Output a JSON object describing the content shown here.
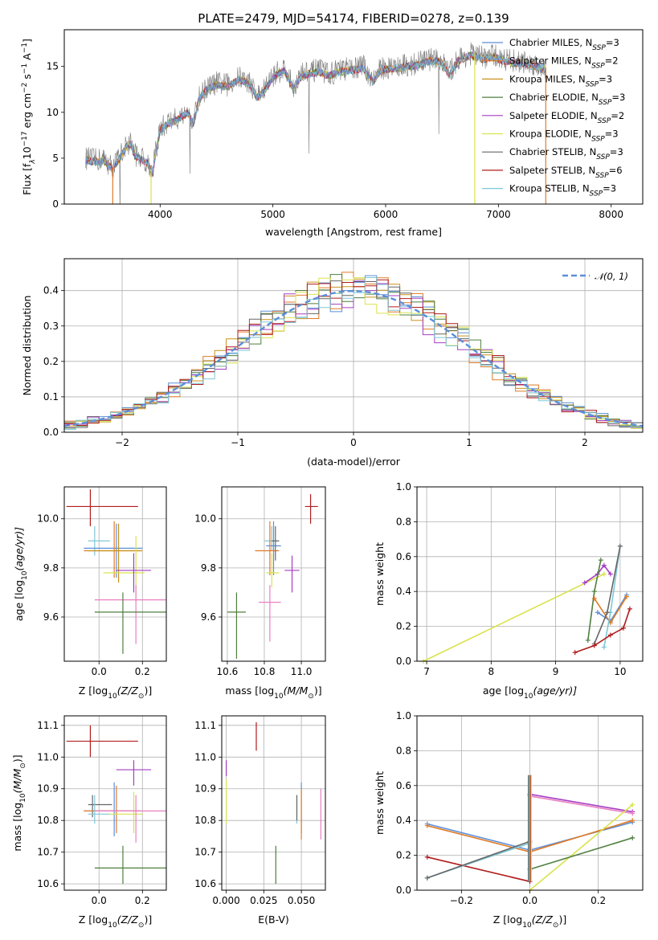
{
  "figure": {
    "title": "PLATE=2479, MJD=54174, FIBERID=0278, z=0.139"
  },
  "colors": {
    "Chabrier MILES": "#5b8fd8",
    "Salpeter MILES": "#e07b28",
    "Kroupa MILES": "#c8921e",
    "Chabrier ELODIE": "#4f7f3f",
    "Salpeter ELODIE": "#a53ec2",
    "Kroupa ELODIE": "#d9e34d",
    "Chabrier STELIB": "#666666",
    "Salpeter STELIB": "#b01c1c",
    "Kroupa STELIB": "#7ec8d8",
    "pink": "#e97fc4"
  },
  "chart_data": [
    {
      "id": "spectrum",
      "type": "line",
      "xlabel": "wavelength [Angstrom, rest frame]",
      "ylabel_main": "Flux [f",
      "ylabel_sub": "λ",
      "ylabel_tail": "10",
      "ylabel_exp": "−17",
      "ylabel_units": " erg cm",
      "ylabel_cm_exp": "−2",
      "ylabel_s": " s",
      "ylabel_s_exp": "−1",
      "ylabel_A": " A",
      "ylabel_A_exp": "−1",
      "ylabel_close": "]",
      "xlim": [
        3150,
        8280
      ],
      "ylim": [
        0,
        19
      ],
      "xticks": [
        4000,
        5000,
        6000,
        7000,
        8000
      ],
      "yticks": [
        0,
        5,
        10,
        15
      ],
      "spectrum_points": [
        [
          3340,
          5.0
        ],
        [
          3420,
          4.8
        ],
        [
          3500,
          4.9
        ],
        [
          3580,
          4.0
        ],
        [
          3640,
          5.2
        ],
        [
          3700,
          6.4
        ],
        [
          3740,
          6.8
        ],
        [
          3780,
          5.4
        ],
        [
          3840,
          5.0
        ],
        [
          3900,
          4.5
        ],
        [
          3930,
          3.4
        ],
        [
          3960,
          5.6
        ],
        [
          4000,
          8.2
        ],
        [
          4080,
          9.0
        ],
        [
          4160,
          9.4
        ],
        [
          4240,
          10.2
        ],
        [
          4300,
          9.0
        ],
        [
          4340,
          11.5
        ],
        [
          4400,
          12.5
        ],
        [
          4500,
          13.2
        ],
        [
          4600,
          13.0
        ],
        [
          4700,
          13.8
        ],
        [
          4800,
          13.2
        ],
        [
          4860,
          11.8
        ],
        [
          4920,
          12.4
        ],
        [
          5000,
          14.0
        ],
        [
          5100,
          14.8
        ],
        [
          5180,
          12.8
        ],
        [
          5260,
          14.2
        ],
        [
          5400,
          14.6
        ],
        [
          5500,
          14.2
        ],
        [
          5600,
          14.6
        ],
        [
          5700,
          14.8
        ],
        [
          5800,
          15.0
        ],
        [
          5890,
          13.6
        ],
        [
          5960,
          14.8
        ],
        [
          6100,
          15.0
        ],
        [
          6200,
          15.2
        ],
        [
          6300,
          15.4
        ],
        [
          6400,
          15.8
        ],
        [
          6500,
          15.6
        ],
        [
          6563,
          14.2
        ],
        [
          6640,
          15.8
        ],
        [
          6760,
          16.4
        ],
        [
          6860,
          16.0
        ],
        [
          6960,
          16.2
        ],
        [
          7060,
          15.8
        ],
        [
          7150,
          15.6
        ],
        [
          7250,
          15.4
        ],
        [
          7330,
          15.2
        ],
        [
          7420,
          14.9
        ]
      ],
      "series_names": [
        "Chabrier MILES",
        "Salpeter MILES",
        "Kroupa MILES",
        "Chabrier ELODIE",
        "Salpeter ELODIE",
        "Kroupa ELODIE",
        "Chabrier STELIB",
        "Salpeter STELIB",
        "Kroupa STELIB"
      ],
      "series_nssp": [
        "3",
        "2",
        "3",
        "3",
        "2",
        "3",
        "3",
        "6",
        "3"
      ],
      "legend_nssp_prefix": "N",
      "legend_nssp_sub": "SSP",
      "legend_placement": "upper right",
      "grid": false
    },
    {
      "id": "residuals",
      "type": "histogram",
      "xlabel": "(data-model)/error",
      "ylabel": "Normed distribution",
      "xlim": [
        -2.5,
        2.5
      ],
      "ylim": [
        0,
        0.49
      ],
      "xticks": [
        -2,
        -1,
        0,
        1,
        2
      ],
      "xtick_labels": [
        "−2",
        "−1",
        "0",
        "1",
        "2"
      ],
      "yticks": [
        0.0,
        0.1,
        0.2,
        0.3,
        0.4
      ],
      "yticklabels": [
        "0.0",
        "0.1",
        "0.2",
        "0.3",
        "0.4"
      ],
      "gaussian_label": "𝒩(0, 1)",
      "legend_placement": "upper right",
      "grid": true
    },
    {
      "id": "age-vs-Z",
      "type": "errorbar",
      "xlabel": "Z [log",
      "xlabel_sub": "10",
      "xlabel_rest": "(Z/Z",
      "xlabel_sun": "⊙",
      "xlabel_close": ")]",
      "ylabel": "age  [log",
      "ylabel_sub": "10",
      "ylabel_rest": "(age/yr)]",
      "xlim": [
        -0.16,
        0.31
      ],
      "ylim": [
        9.42,
        10.13
      ],
      "xticks": [
        0.0,
        0.2
      ],
      "xticklabels": [
        "0.0",
        "0.2"
      ],
      "yticks": [
        9.6,
        9.8,
        10.0
      ],
      "yticklabels": [
        "9.6",
        "9.8",
        "10.0"
      ],
      "points": [
        {
          "color": "Salpeter STELIB",
          "x": -0.04,
          "xlo": -0.15,
          "xhi": 0.18,
          "y": 10.05,
          "ylo": 9.97,
          "yhi": 10.12
        },
        {
          "color": "Kroupa STELIB",
          "x": -0.02,
          "xlo": -0.05,
          "xhi": 0.05,
          "y": 9.91,
          "ylo": 9.85,
          "yhi": 9.97
        },
        {
          "color": "Chabrier MILES",
          "x": 0.08,
          "xlo": -0.07,
          "xhi": 0.2,
          "y": 9.88,
          "ylo": 9.76,
          "yhi": 9.98
        },
        {
          "color": "Salpeter MILES",
          "x": 0.07,
          "xlo": -0.07,
          "xhi": 0.19,
          "y": 9.87,
          "ylo": 9.76,
          "yhi": 9.99
        },
        {
          "color": "Kroupa MILES",
          "x": 0.09,
          "xlo": -0.05,
          "xhi": 0.2,
          "y": 9.87,
          "ylo": 9.74,
          "yhi": 9.98
        },
        {
          "color": "Kroupa ELODIE",
          "x": 0.17,
          "xlo": 0.02,
          "xhi": 0.21,
          "y": 9.78,
          "ylo": 9.66,
          "yhi": 9.93
        },
        {
          "color": "Salpeter ELODIE",
          "x": 0.16,
          "xlo": 0.08,
          "xhi": 0.24,
          "y": 9.79,
          "ylo": 9.7,
          "yhi": 9.86
        },
        {
          "color": "pink",
          "x": 0.17,
          "xlo": -0.02,
          "xhi": 0.31,
          "y": 9.67,
          "ylo": 9.49,
          "yhi": 9.73
        },
        {
          "color": "Chabrier ELODIE",
          "x": 0.11,
          "xlo": -0.02,
          "xhi": 0.31,
          "y": 9.62,
          "ylo": 9.45,
          "yhi": 9.7
        }
      ],
      "grid": true
    },
    {
      "id": "age-vs-mass",
      "type": "errorbar",
      "xlabel": "mass [log",
      "xlabel_sub": "10",
      "xlabel_rest": "(M/M",
      "xlabel_sun": "⊙",
      "xlabel_close": ")]",
      "xlim": [
        10.57,
        11.13
      ],
      "ylim": [
        9.42,
        10.13
      ],
      "xticks": [
        10.6,
        10.8,
        11.0
      ],
      "xticklabels": [
        "10.6",
        "10.8",
        "11.0"
      ],
      "yticks": [
        9.6,
        9.8,
        10.0
      ],
      "yticklabels": [
        "9.6",
        "9.8",
        "10.0"
      ],
      "points": [
        {
          "color": "Salpeter STELIB",
          "x": 11.05,
          "xlo": 11.02,
          "xhi": 11.09,
          "y": 10.05,
          "ylo": 9.98,
          "yhi": 10.1
        },
        {
          "color": "Kroupa STELIB",
          "x": 10.84,
          "xlo": 10.8,
          "xhi": 10.88,
          "y": 9.91,
          "ylo": 9.87,
          "yhi": 9.97
        },
        {
          "color": "Chabrier MILES",
          "x": 10.85,
          "xlo": 10.81,
          "xhi": 10.89,
          "y": 9.89,
          "ylo": 9.77,
          "yhi": 9.99
        },
        {
          "color": "Salpeter MILES",
          "x": 10.83,
          "xlo": 10.75,
          "xhi": 10.88,
          "y": 9.87,
          "ylo": 9.77,
          "yhi": 9.99
        },
        {
          "color": "Chabrier STELIB",
          "x": 10.86,
          "xlo": 10.84,
          "xhi": 10.88,
          "y": 9.91,
          "ylo": 9.83,
          "yhi": 9.97
        },
        {
          "color": "Kroupa ELODIE",
          "x": 10.84,
          "xlo": 10.81,
          "xhi": 10.88,
          "y": 9.78,
          "ylo": 9.72,
          "yhi": 9.86
        },
        {
          "color": "Salpeter ELODIE",
          "x": 10.95,
          "xlo": 10.91,
          "xhi": 10.99,
          "y": 9.79,
          "ylo": 9.7,
          "yhi": 9.85
        },
        {
          "color": "pink",
          "x": 10.83,
          "xlo": 10.77,
          "xhi": 10.89,
          "y": 9.66,
          "ylo": 9.5,
          "yhi": 9.73
        },
        {
          "color": "Chabrier ELODIE",
          "x": 10.65,
          "xlo": 10.6,
          "xhi": 10.7,
          "y": 9.62,
          "ylo": 9.43,
          "yhi": 9.7
        }
      ],
      "grid": true
    },
    {
      "id": "weight-vs-age",
      "type": "line",
      "xlabel": "age  [log",
      "xlabel_sub": "10",
      "xlabel_rest": "(age/yr)]",
      "ylabel": "mass weight",
      "xlim": [
        6.85,
        10.35
      ],
      "ylim": [
        0,
        1.0
      ],
      "xticks": [
        7,
        8,
        9,
        10
      ],
      "yticks": [
        0.0,
        0.2,
        0.4,
        0.6,
        0.8,
        1.0
      ],
      "yticklabels": [
        "0.0",
        "0.2",
        "0.4",
        "0.6",
        "0.8",
        "1.0"
      ],
      "series": [
        {
          "color": "Kroupa ELODIE",
          "x": [
            6.95,
            9.75
          ],
          "y": [
            0.0,
            0.5
          ]
        },
        {
          "color": "Salpeter ELODIE",
          "x": [
            9.45,
            9.65,
            9.75,
            9.85
          ],
          "y": [
            0.45,
            0.5,
            0.55,
            0.5
          ]
        },
        {
          "color": "Chabrier ELODIE",
          "x": [
            9.5,
            9.6,
            9.7
          ],
          "y": [
            0.12,
            0.4,
            0.58
          ]
        },
        {
          "color": "Chabrier MILES",
          "x": [
            9.65,
            9.85,
            10.1
          ],
          "y": [
            0.28,
            0.23,
            0.38
          ]
        },
        {
          "color": "Salpeter MILES",
          "x": [
            9.6,
            9.85,
            10.1
          ],
          "y": [
            0.36,
            0.22,
            0.37
          ]
        },
        {
          "color": "Kroupa STELIB",
          "x": [
            9.75,
            9.85,
            10.0
          ],
          "y": [
            0.08,
            0.28,
            0.66
          ]
        },
        {
          "color": "Chabrier STELIB",
          "x": [
            9.6,
            9.8,
            10.0
          ],
          "y": [
            0.1,
            0.28,
            0.66
          ]
        },
        {
          "color": "Salpeter STELIB",
          "x": [
            9.3,
            9.6,
            9.85,
            10.05,
            10.15
          ],
          "y": [
            0.05,
            0.09,
            0.15,
            0.19,
            0.3
          ]
        }
      ],
      "grid": true
    },
    {
      "id": "mass-vs-Z",
      "type": "errorbar",
      "xlabel": "Z [log",
      "xlabel_sub": "10",
      "xlabel_rest": "(Z/Z",
      "xlabel_sun": "⊙",
      "xlabel_close": ")]",
      "ylabel": "mass [log",
      "ylabel_sub": "10",
      "ylabel_rest": "(M/M",
      "ylabel_sun": "⊙",
      "ylabel_close": ")]",
      "xlim": [
        -0.16,
        0.31
      ],
      "ylim": [
        10.58,
        11.13
      ],
      "xticks": [
        0.0,
        0.2
      ],
      "xticklabels": [
        "0.0",
        "0.2"
      ],
      "yticks": [
        10.6,
        10.7,
        10.8,
        10.9,
        11.0,
        11.1
      ],
      "yticklabels": [
        "10.6",
        "10.7",
        "10.8",
        "10.9",
        "11.0",
        "11.1"
      ],
      "points": [
        {
          "color": "Salpeter STELIB",
          "x": -0.04,
          "xlo": -0.15,
          "xhi": 0.18,
          "y": 11.05,
          "ylo": 11.0,
          "yhi": 11.1
        },
        {
          "color": "Salpeter ELODIE",
          "x": 0.16,
          "xlo": 0.08,
          "xhi": 0.24,
          "y": 10.96,
          "ylo": 10.91,
          "yhi": 10.99
        },
        {
          "color": "Chabrier STELIB",
          "x": -0.03,
          "xlo": -0.05,
          "xhi": 0.06,
          "y": 10.85,
          "ylo": 10.81,
          "yhi": 10.88
        },
        {
          "color": "Chabrier MILES",
          "x": 0.07,
          "xlo": -0.07,
          "xhi": 0.19,
          "y": 10.83,
          "ylo": 10.75,
          "yhi": 10.92
        },
        {
          "color": "Salpeter MILES",
          "x": 0.08,
          "xlo": -0.07,
          "xhi": 0.19,
          "y": 10.83,
          "ylo": 10.76,
          "yhi": 10.91
        },
        {
          "color": "Kroupa STELIB",
          "x": -0.02,
          "xlo": -0.05,
          "xhi": 0.05,
          "y": 10.82,
          "ylo": 10.79,
          "yhi": 10.88
        },
        {
          "color": "Kroupa ELODIE",
          "x": 0.16,
          "xlo": 0.05,
          "xhi": 0.2,
          "y": 10.82,
          "ylo": 10.76,
          "yhi": 10.89
        },
        {
          "color": "pink",
          "x": 0.17,
          "xlo": -0.02,
          "xhi": 0.31,
          "y": 10.83,
          "ylo": 10.73,
          "yhi": 10.88
        },
        {
          "color": "Chabrier ELODIE",
          "x": 0.11,
          "xlo": -0.02,
          "xhi": 0.31,
          "y": 10.65,
          "ylo": 10.6,
          "yhi": 10.72
        }
      ],
      "grid": true
    },
    {
      "id": "mass-vs-EBV",
      "type": "errorbar",
      "xlabel": "E(B-V)",
      "xlim": [
        -0.003,
        0.066
      ],
      "ylim": [
        10.58,
        11.13
      ],
      "xticks": [
        0.0,
        0.025,
        0.05
      ],
      "xticklabels": [
        "0.000",
        "0.025",
        "0.050"
      ],
      "yticks": [
        10.6,
        10.7,
        10.8,
        10.9,
        11.0,
        11.1
      ],
      "yticklabels": [
        "10.6",
        "10.7",
        "10.8",
        "10.9",
        "11.0",
        "11.1"
      ],
      "points": [
        {
          "color": "Salpeter STELIB",
          "x": 0.02,
          "xlo": 0.02,
          "xhi": 0.02,
          "y": 11.05,
          "ylo": 11.02,
          "yhi": 11.11
        },
        {
          "color": "Salpeter ELODIE",
          "x": 0.0,
          "xlo": 0.0,
          "xhi": 0.0,
          "y": 10.96,
          "ylo": 10.94,
          "yhi": 10.99
        },
        {
          "color": "Kroupa ELODIE",
          "x": 0.0,
          "xlo": 0.0,
          "xhi": 0.0,
          "y": 10.85,
          "ylo": 10.79,
          "yhi": 10.93
        },
        {
          "color": "Chabrier MILES",
          "x": 0.05,
          "xlo": 0.05,
          "xhi": 0.05,
          "y": 10.83,
          "ylo": 10.76,
          "yhi": 10.92
        },
        {
          "color": "Salpeter MILES",
          "x": 0.05,
          "xlo": 0.05,
          "xhi": 0.05,
          "y": 10.83,
          "ylo": 10.74,
          "yhi": 10.9
        },
        {
          "color": "Kroupa STELIB",
          "x": 0.047,
          "xlo": 0.047,
          "xhi": 0.047,
          "y": 10.83,
          "ylo": 10.79,
          "yhi": 10.88
        },
        {
          "color": "Chabrier STELIB",
          "x": 0.047,
          "xlo": 0.047,
          "xhi": 0.047,
          "y": 10.84,
          "ylo": 10.8,
          "yhi": 10.88
        },
        {
          "color": "pink",
          "x": 0.063,
          "xlo": 0.063,
          "xhi": 0.063,
          "y": 10.82,
          "ylo": 10.74,
          "yhi": 10.9
        },
        {
          "color": "Chabrier ELODIE",
          "x": 0.033,
          "xlo": 0.033,
          "xhi": 0.033,
          "y": 10.65,
          "ylo": 10.6,
          "yhi": 10.72
        }
      ],
      "grid": true
    },
    {
      "id": "weight-vs-Z",
      "type": "line",
      "xlabel": "Z [log",
      "xlabel_sub": "10",
      "xlabel_rest": "(Z/Z",
      "xlabel_sun": "⊙",
      "xlabel_close": ")]",
      "ylabel": "mass weight",
      "xlim": [
        -0.33,
        0.33
      ],
      "ylim": [
        0,
        1.0
      ],
      "xticks": [
        -0.2,
        0.0,
        0.2
      ],
      "xticklabels": [
        "−0.2",
        "0.0",
        "0.2"
      ],
      "yticks": [
        0.0,
        0.2,
        0.4,
        0.6,
        0.8,
        1.0
      ],
      "yticklabels": [
        "0.0",
        "0.2",
        "0.4",
        "0.6",
        "0.8",
        "1.0"
      ],
      "series": [
        {
          "color": "Chabrier MILES",
          "x": [
            -0.3,
            0.0,
            0.3
          ],
          "y": [
            0.38,
            0.23,
            0.39
          ]
        },
        {
          "color": "Salpeter MILES",
          "x": [
            -0.3,
            0.0,
            0.3
          ],
          "y": [
            0.37,
            0.22,
            0.4
          ]
        },
        {
          "color": "Salpeter ELODIE",
          "x": [
            0.0,
            0.3
          ],
          "y": [
            0.55,
            0.45
          ]
        },
        {
          "color": "pink",
          "x": [
            0.0,
            0.3
          ],
          "y": [
            0.54,
            0.44
          ]
        },
        {
          "color": "Kroupa ELODIE",
          "x": [
            0.0,
            0.3
          ],
          "y": [
            0.0,
            0.49
          ]
        },
        {
          "color": "Chabrier ELODIE",
          "x": [
            0.0,
            0.3
          ],
          "y": [
            0.12,
            0.3
          ]
        },
        {
          "color": "Salpeter STELIB",
          "x": [
            -0.3,
            0.0
          ],
          "y": [
            0.19,
            0.05
          ]
        },
        {
          "color": "Kroupa STELIB",
          "x": [
            -0.3,
            0.0
          ],
          "y": [
            0.07,
            0.27
          ]
        },
        {
          "color": "Chabrier STELIB",
          "x": [
            -0.3,
            0.0
          ],
          "y": [
            0.07,
            0.28
          ]
        }
      ],
      "vertical_cluster": {
        "x": 0.0,
        "ylo": 0.05,
        "yhi": 0.66,
        "colors": [
          "Chabrier STELIB",
          "Kroupa STELIB",
          "Salpeter STELIB",
          "Kroupa ELODIE"
        ]
      },
      "grid": true
    }
  ]
}
